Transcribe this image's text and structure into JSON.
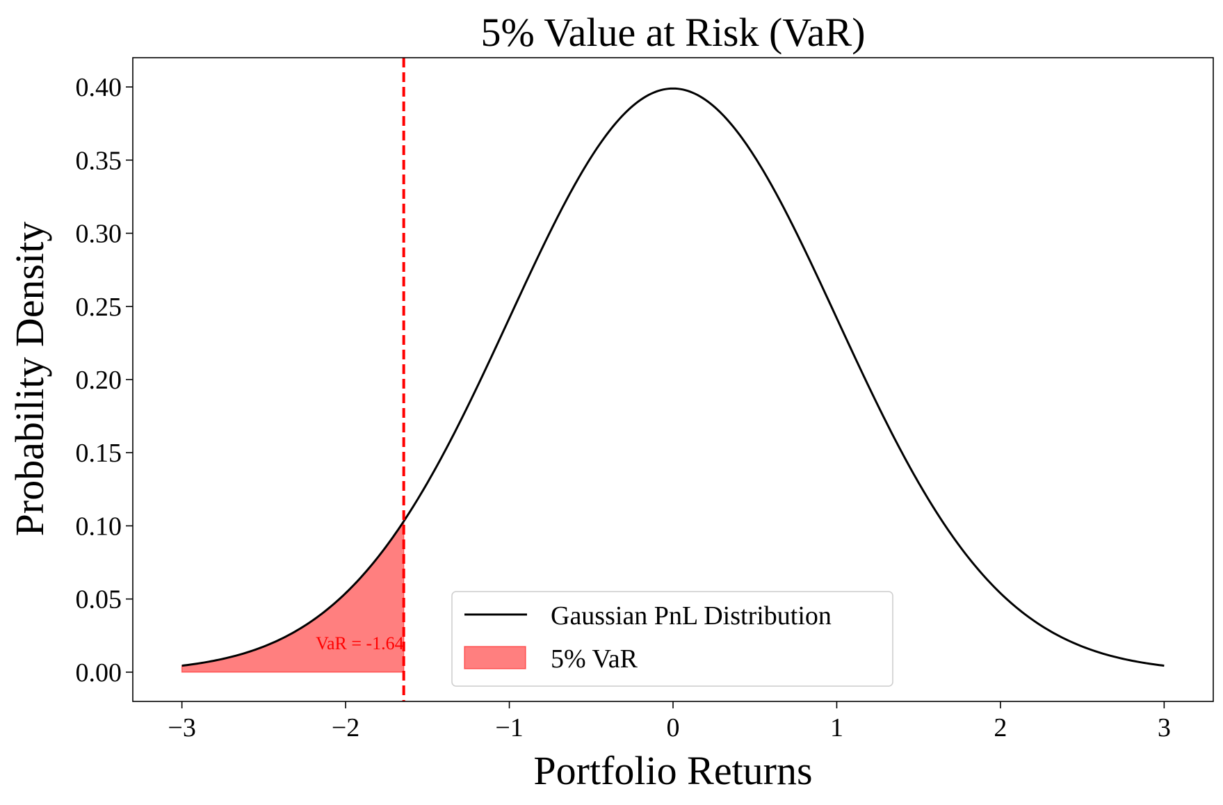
{
  "chart_data": {
    "type": "line",
    "title": "5% Value at Risk (VaR)",
    "xlabel": "Portfolio Returns",
    "ylabel": "Probability Density",
    "xlim": [
      -3.3,
      3.3
    ],
    "ylim": [
      -0.02,
      0.42
    ],
    "x_ticks": [
      -3,
      -2,
      -1,
      0,
      1,
      2,
      3
    ],
    "x_tick_labels": [
      "−3",
      "−2",
      "−1",
      "0",
      "1",
      "2",
      "3"
    ],
    "y_ticks": [
      0.0,
      0.05,
      0.1,
      0.15,
      0.2,
      0.25,
      0.3,
      0.35,
      0.4
    ],
    "y_tick_labels": [
      "0.00",
      "0.05",
      "0.10",
      "0.15",
      "0.20",
      "0.25",
      "0.30",
      "0.35",
      "0.40"
    ],
    "grid": false,
    "series": [
      {
        "name": "Gaussian PnL Distribution",
        "type": "line",
        "color": "#000000",
        "distribution": "normal",
        "mean": 0,
        "std": 1,
        "x_range": [
          -3,
          3
        ],
        "x": [
          -3,
          -2.5,
          -2,
          -1.645,
          -1.5,
          -1,
          -0.5,
          0,
          0.5,
          1,
          1.5,
          2,
          2.5,
          3
        ],
        "y": [
          0.0044,
          0.0175,
          0.054,
          0.1031,
          0.1295,
          0.242,
          0.3521,
          0.3989,
          0.3521,
          0.242,
          0.1295,
          0.054,
          0.0175,
          0.0044
        ]
      },
      {
        "name": "5% VaR",
        "type": "area",
        "color": "#ff0000",
        "opacity": 0.5,
        "x_range": [
          -3,
          -1.645
        ]
      }
    ],
    "var_line": {
      "x": -1.645,
      "color": "#ff0000",
      "style": "dashed"
    },
    "annotation": {
      "text": "VaR = -1.64",
      "x": -1.645,
      "y": 0.02,
      "color": "#ff0000"
    },
    "legend": {
      "position": "lower-center",
      "entries": [
        "Gaussian PnL Distribution",
        "5% VaR"
      ]
    }
  }
}
